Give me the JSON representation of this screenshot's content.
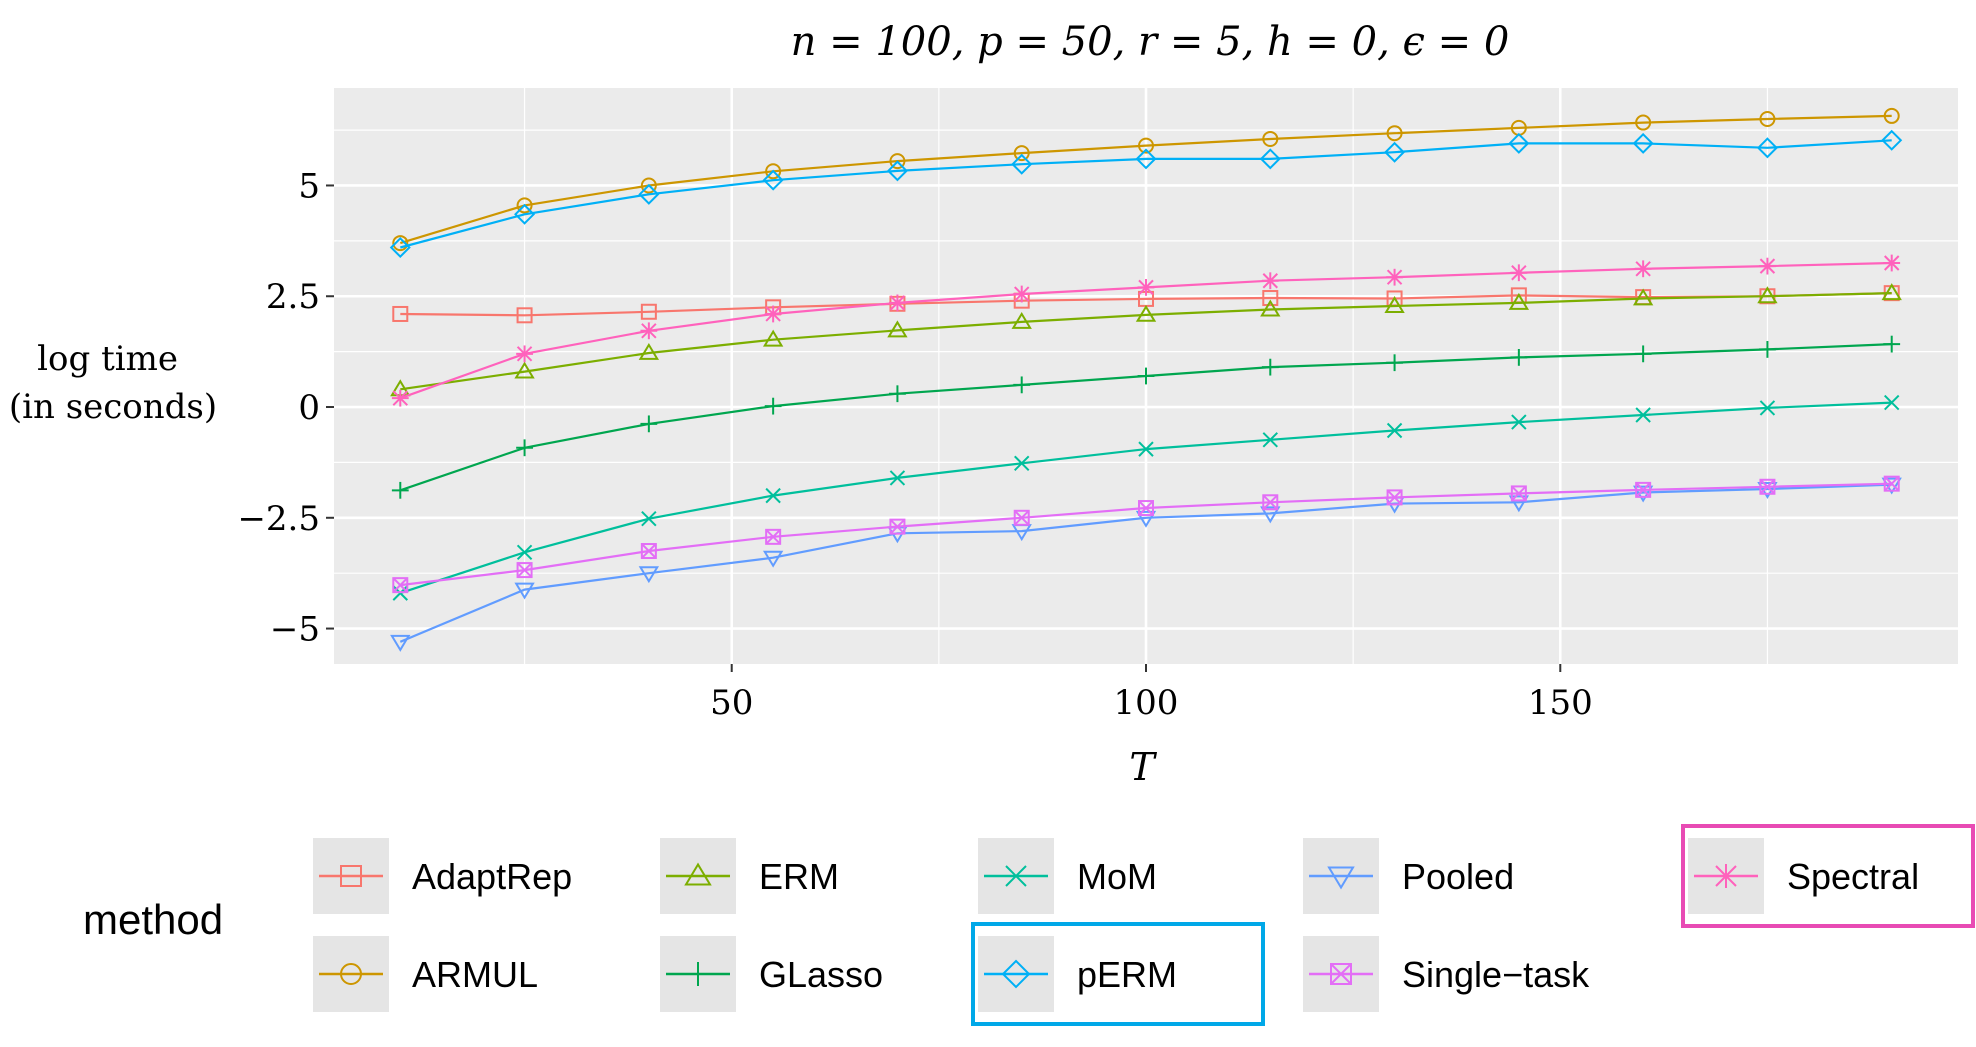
{
  "chart_data": {
    "type": "line",
    "title": "n = 100, p = 50, r = 5, h = 0, ϵ = 0",
    "xlabel": "T",
    "ylabel": [
      "log time",
      "(in seconds)"
    ],
    "xlim": [
      2,
      198
    ],
    "ylim": [
      -5.8,
      7.2
    ],
    "x_ticks": [
      50,
      100,
      150
    ],
    "x_tick_labels": [
      "50",
      "100",
      "150"
    ],
    "y_ticks": [
      5,
      2.5,
      0,
      -2.5,
      -5
    ],
    "y_tick_labels": [
      "5",
      "2.5",
      "0",
      "−2.5",
      "−5"
    ],
    "grid": true,
    "x": [
      10,
      25,
      40,
      55,
      70,
      85,
      100,
      115,
      130,
      145,
      160,
      175,
      190
    ],
    "series": [
      {
        "name": "AdaptRep",
        "color": "#F8766D",
        "marker": "square",
        "values": [
          2.1,
          2.07,
          2.15,
          2.25,
          2.33,
          2.4,
          2.44,
          2.46,
          2.45,
          2.52,
          2.48,
          2.5,
          2.57
        ]
      },
      {
        "name": "ARMUL",
        "color": "#CD9600",
        "marker": "circle",
        "values": [
          3.7,
          4.55,
          5.0,
          5.32,
          5.55,
          5.73,
          5.9,
          6.05,
          6.18,
          6.3,
          6.42,
          6.5,
          6.57
        ]
      },
      {
        "name": "ERM",
        "color": "#7CAE00",
        "marker": "triangle-up",
        "values": [
          0.4,
          0.8,
          1.22,
          1.52,
          1.73,
          1.92,
          2.08,
          2.2,
          2.28,
          2.35,
          2.45,
          2.5,
          2.57
        ]
      },
      {
        "name": "GLasso",
        "color": "#00A64F",
        "marker": "plus",
        "values": [
          -1.88,
          -0.92,
          -0.38,
          0.02,
          0.3,
          0.5,
          0.7,
          0.9,
          1.0,
          1.12,
          1.2,
          1.3,
          1.42
        ]
      },
      {
        "name": "MoM",
        "color": "#00BF9C",
        "marker": "cross",
        "values": [
          -4.2,
          -3.28,
          -2.52,
          -2.0,
          -1.6,
          -1.27,
          -0.95,
          -0.74,
          -0.53,
          -0.34,
          -0.18,
          -0.02,
          0.1
        ]
      },
      {
        "name": "pERM",
        "color": "#00B0F6",
        "marker": "diamond",
        "values": [
          3.6,
          4.35,
          4.8,
          5.12,
          5.33,
          5.48,
          5.6,
          5.6,
          5.75,
          5.95,
          5.95,
          5.85,
          6.02
        ]
      },
      {
        "name": "Pooled",
        "color": "#619CFF",
        "marker": "triangle-down",
        "values": [
          -5.3,
          -4.12,
          -3.75,
          -3.4,
          -2.85,
          -2.8,
          -2.5,
          -2.4,
          -2.18,
          -2.15,
          -1.93,
          -1.85,
          -1.75
        ]
      },
      {
        "name": "Single−task",
        "color": "#E36EF6",
        "marker": "square-x",
        "values": [
          -4.02,
          -3.68,
          -3.25,
          -2.93,
          -2.7,
          -2.5,
          -2.28,
          -2.15,
          -2.04,
          -1.95,
          -1.87,
          -1.8,
          -1.73
        ]
      },
      {
        "name": "Spectral",
        "color": "#FF62BC",
        "marker": "asterisk",
        "values": [
          0.2,
          1.2,
          1.72,
          2.1,
          2.35,
          2.55,
          2.7,
          2.85,
          2.93,
          3.03,
          3.12,
          3.18,
          3.25
        ]
      }
    ],
    "legend": {
      "title": "method",
      "placement": "bottom",
      "highlighted": [
        {
          "name": "pERM",
          "color": "#00A8E8"
        },
        {
          "name": "Spectral",
          "color": "#E84BB4"
        }
      ]
    }
  },
  "style": {
    "panel_background": "#EBEBEB",
    "grid_color": "#FFFFFF",
    "legend_key_background": "#E5E5E5"
  }
}
